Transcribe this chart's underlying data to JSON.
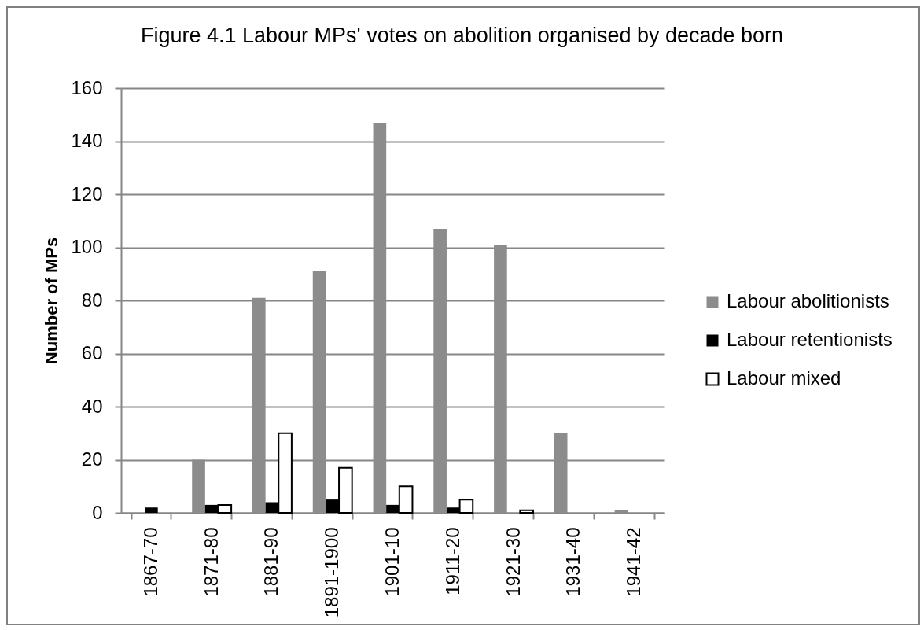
{
  "chart_data": {
    "type": "bar",
    "title": "Figure 4.1 Labour MPs' votes on abolition organised by decade born",
    "ylabel": "Number of MPs",
    "categories": [
      "1867-70",
      "1871-80",
      "1881-90",
      "1891-1900",
      "1901-10",
      "1911-20",
      "1921-30",
      "1931-40",
      "1941-42"
    ],
    "series": [
      {
        "name": "Labour abolitionists",
        "color": "#8c8c8c",
        "values": [
          0,
          20,
          81,
          91,
          147,
          107,
          101,
          30,
          1
        ]
      },
      {
        "name": "Labour retentionists",
        "color": "#000000",
        "values": [
          2,
          3,
          4,
          5,
          3,
          2,
          0,
          0,
          0
        ]
      },
      {
        "name": "Labour mixed",
        "color": "#ffffff",
        "values": [
          0,
          3,
          30,
          17,
          10,
          5,
          1,
          0,
          0
        ]
      }
    ],
    "ylim": [
      0,
      160
    ],
    "yticks": [
      0,
      20,
      40,
      60,
      80,
      100,
      120,
      140,
      160
    ],
    "grid": "y",
    "legend": "right"
  }
}
